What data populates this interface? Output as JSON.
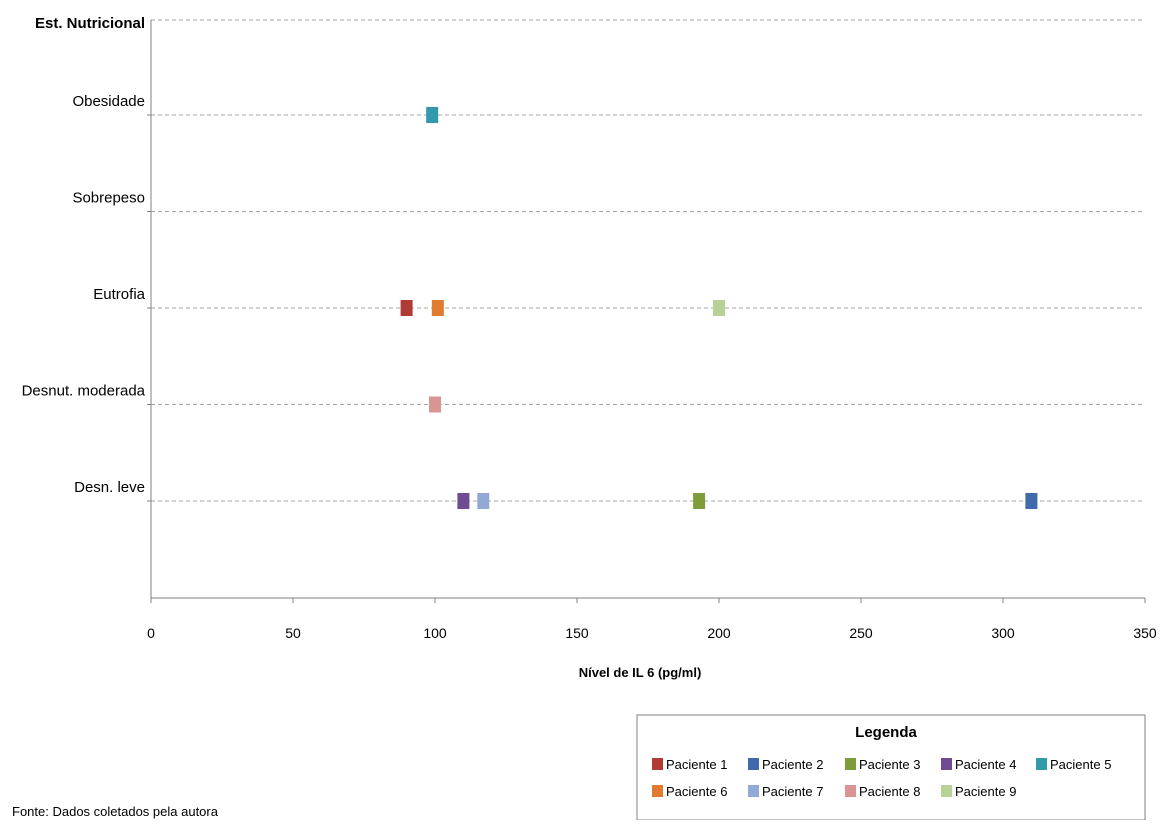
{
  "chart_data": {
    "type": "scatter",
    "title": "",
    "xlabel": "Nível de IL 6 (pg/ml)",
    "ylabel": "Est. Nutricional",
    "xlim": [
      0,
      350
    ],
    "xticks": [
      0,
      50,
      100,
      150,
      200,
      250,
      300,
      350
    ],
    "y_categories": [
      "Desn. leve",
      "Desnut. moderada",
      "Eutrofia",
      "Sobrepeso",
      "Obesidade"
    ],
    "grid": "horizontal-dashed",
    "legend": {
      "title": "Legenda",
      "placement": "bottom-right"
    },
    "series": [
      {
        "name": "Paciente 1",
        "color": "#B03A36",
        "x": 90,
        "y": "Eutrofia"
      },
      {
        "name": "Paciente 2",
        "color": "#3F6AAB",
        "x": 310,
        "y": "Desn. leve"
      },
      {
        "name": "Paciente 3",
        "color": "#7E9D3A",
        "x": 193,
        "y": "Desn. leve"
      },
      {
        "name": "Paciente 4",
        "color": "#6E4B93",
        "x": 110,
        "y": "Desn. leve"
      },
      {
        "name": "Paciente 5",
        "color": "#3399AD",
        "x": 99,
        "y": "Obesidade"
      },
      {
        "name": "Paciente 6",
        "color": "#E07B2F",
        "x": 101,
        "y": "Eutrofia"
      },
      {
        "name": "Paciente 7",
        "color": "#93A9D5",
        "x": 117,
        "y": "Desn. leve"
      },
      {
        "name": "Paciente 8",
        "color": "#D99593",
        "x": 100,
        "y": "Desnut. moderada"
      },
      {
        "name": "Paciente 9",
        "color": "#B7D294",
        "x": 200,
        "y": "Eutrofia"
      }
    ]
  },
  "source_note": "Fonte: Dados coletados pela autora"
}
